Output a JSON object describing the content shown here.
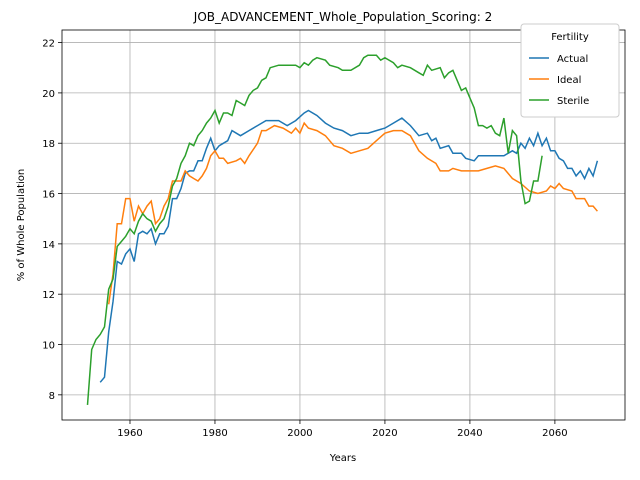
{
  "chart_data": {
    "type": "line",
    "title": "JOB_ADVANCEMENT_Whole_Population_Scoring: 2",
    "x_label": "Years",
    "y_label": "% of Whole Population",
    "legend_title": "Fertility",
    "legend_position": "upper right",
    "grid": true,
    "xlim": [
      1944,
      2076.5
    ],
    "ylim": [
      7.0,
      22.5
    ],
    "xticks": [
      1960,
      1980,
      2000,
      2020,
      2040,
      2060
    ],
    "yticks": [
      8,
      10,
      12,
      14,
      16,
      18,
      20,
      22
    ],
    "series": [
      {
        "name": "Actual",
        "color": "#1f77b4",
        "x": [
          1953,
          1954,
          1955,
          1956,
          1957,
          1958,
          1959,
          1960,
          1961,
          1962,
          1963,
          1964,
          1965,
          1966,
          1967,
          1968,
          1969,
          1970,
          1971,
          1972,
          1973,
          1974,
          1975,
          1976,
          1977,
          1978,
          1979,
          1980,
          1981,
          1982,
          1983,
          1984,
          1986,
          1988,
          1990,
          1992,
          1995,
          1997,
          1999,
          2001,
          2002,
          2004,
          2006,
          2008,
          2010,
          2012,
          2014,
          2016,
          2018,
          2020,
          2022,
          2024,
          2026,
          2028,
          2030,
          2031,
          2032,
          2033,
          2035,
          2036,
          2038,
          2039,
          2041,
          2042,
          2044,
          2046,
          2048,
          2050,
          2051,
          2052,
          2053,
          2054,
          2055,
          2056,
          2057,
          2058,
          2059,
          2060,
          2061,
          2062,
          2063,
          2064,
          2065,
          2066,
          2067,
          2068,
          2069,
          2070
        ],
        "values": [
          8.5,
          8.7,
          10.5,
          11.7,
          13.3,
          13.2,
          13.6,
          13.8,
          13.3,
          14.4,
          14.5,
          14.4,
          14.6,
          14.0,
          14.4,
          14.4,
          14.7,
          15.8,
          15.8,
          16.2,
          16.8,
          16.9,
          16.9,
          17.3,
          17.3,
          17.8,
          18.2,
          17.7,
          17.9,
          18.0,
          18.1,
          18.5,
          18.3,
          18.5,
          18.7,
          18.9,
          18.9,
          18.7,
          18.9,
          19.2,
          19.3,
          19.1,
          18.8,
          18.6,
          18.5,
          18.3,
          18.4,
          18.4,
          18.5,
          18.6,
          18.8,
          19.0,
          18.7,
          18.3,
          18.4,
          18.1,
          18.2,
          17.8,
          17.9,
          17.6,
          17.6,
          17.4,
          17.3,
          17.5,
          17.5,
          17.5,
          17.5,
          17.7,
          17.6,
          18.0,
          17.8,
          18.2,
          17.9,
          18.4,
          17.9,
          18.2,
          17.7,
          17.7,
          17.4,
          17.3,
          17.0,
          17.0,
          16.7,
          16.9,
          16.6,
          17.0,
          16.7,
          17.3
        ]
      },
      {
        "name": "Ideal",
        "color": "#ff7f0e",
        "x": [
          1955,
          1956,
          1957,
          1958,
          1959,
          1960,
          1961,
          1962,
          1963,
          1964,
          1965,
          1966,
          1967,
          1968,
          1969,
          1970,
          1971,
          1972,
          1973,
          1974,
          1975,
          1976,
          1977,
          1978,
          1979,
          1980,
          1981,
          1982,
          1983,
          1985,
          1986,
          1987,
          1988,
          1990,
          1991,
          1992,
          1994,
          1996,
          1998,
          1999,
          2000,
          2001,
          2002,
          2004,
          2006,
          2008,
          2010,
          2012,
          2014,
          2016,
          2018,
          2020,
          2022,
          2024,
          2026,
          2028,
          2030,
          2032,
          2033,
          2035,
          2036,
          2038,
          2040,
          2042,
          2044,
          2046,
          2048,
          2050,
          2052,
          2054,
          2056,
          2058,
          2059,
          2060,
          2061,
          2062,
          2064,
          2065,
          2067,
          2068,
          2069,
          2070
        ],
        "values": [
          11.6,
          12.8,
          14.8,
          14.8,
          15.8,
          15.8,
          14.9,
          15.5,
          15.2,
          15.5,
          15.7,
          14.8,
          15.0,
          15.5,
          15.8,
          16.5,
          16.5,
          16.5,
          16.9,
          16.7,
          16.6,
          16.5,
          16.7,
          17.0,
          17.5,
          17.7,
          17.4,
          17.4,
          17.2,
          17.3,
          17.4,
          17.2,
          17.5,
          18.0,
          18.5,
          18.5,
          18.7,
          18.6,
          18.4,
          18.6,
          18.4,
          18.8,
          18.6,
          18.5,
          18.3,
          17.9,
          17.8,
          17.6,
          17.7,
          17.8,
          18.1,
          18.4,
          18.5,
          18.5,
          18.3,
          17.7,
          17.4,
          17.2,
          16.9,
          16.9,
          17.0,
          16.9,
          16.9,
          16.9,
          17.0,
          17.1,
          17.0,
          16.6,
          16.4,
          16.1,
          16.0,
          16.1,
          16.3,
          16.2,
          16.4,
          16.2,
          16.1,
          15.8,
          15.8,
          15.5,
          15.5,
          15.3
        ]
      },
      {
        "name": "Sterile",
        "color": "#2ca02c",
        "x": [
          1950,
          1951,
          1952,
          1953,
          1954,
          1955,
          1956,
          1957,
          1958,
          1959,
          1960,
          1961,
          1962,
          1963,
          1964,
          1965,
          1966,
          1967,
          1968,
          1969,
          1970,
          1971,
          1972,
          1973,
          1974,
          1975,
          1976,
          1977,
          1978,
          1979,
          1980,
          1981,
          1982,
          1983,
          1984,
          1985,
          1986,
          1987,
          1988,
          1989,
          1990,
          1991,
          1992,
          1993,
          1995,
          1997,
          1999,
          2000,
          2001,
          2002,
          2003,
          2004,
          2006,
          2007,
          2009,
          2010,
          2011,
          2012,
          2014,
          2015,
          2016,
          2018,
          2019,
          2020,
          2022,
          2023,
          2024,
          2026,
          2028,
          2029,
          2030,
          2031,
          2033,
          2034,
          2035,
          2036,
          2038,
          2039,
          2040,
          2041,
          2042,
          2043,
          2044,
          2045,
          2046,
          2047,
          2048,
          2049,
          2050,
          2051,
          2052,
          2053,
          2054,
          2055,
          2056,
          2057
        ],
        "values": [
          7.6,
          9.8,
          10.2,
          10.4,
          10.7,
          12.2,
          12.6,
          13.9,
          14.1,
          14.3,
          14.6,
          14.4,
          14.9,
          15.2,
          15.0,
          14.9,
          14.5,
          14.8,
          15.0,
          15.5,
          16.3,
          16.6,
          17.2,
          17.5,
          18.0,
          17.9,
          18.3,
          18.5,
          18.8,
          19.0,
          19.3,
          18.8,
          19.2,
          19.2,
          19.1,
          19.7,
          19.6,
          19.5,
          19.9,
          20.1,
          20.2,
          20.5,
          20.6,
          21.0,
          21.1,
          21.1,
          21.1,
          21.0,
          21.2,
          21.1,
          21.3,
          21.4,
          21.3,
          21.1,
          21.0,
          20.9,
          20.9,
          20.9,
          21.1,
          21.4,
          21.5,
          21.5,
          21.3,
          21.4,
          21.2,
          21.0,
          21.1,
          21.0,
          20.8,
          20.7,
          21.1,
          20.9,
          21.0,
          20.6,
          20.8,
          20.9,
          20.1,
          20.2,
          19.8,
          19.4,
          18.7,
          18.7,
          18.6,
          18.7,
          18.4,
          18.3,
          19.0,
          17.6,
          18.5,
          18.3,
          16.5,
          15.6,
          15.7,
          16.5,
          16.5,
          17.5
        ]
      }
    ]
  }
}
